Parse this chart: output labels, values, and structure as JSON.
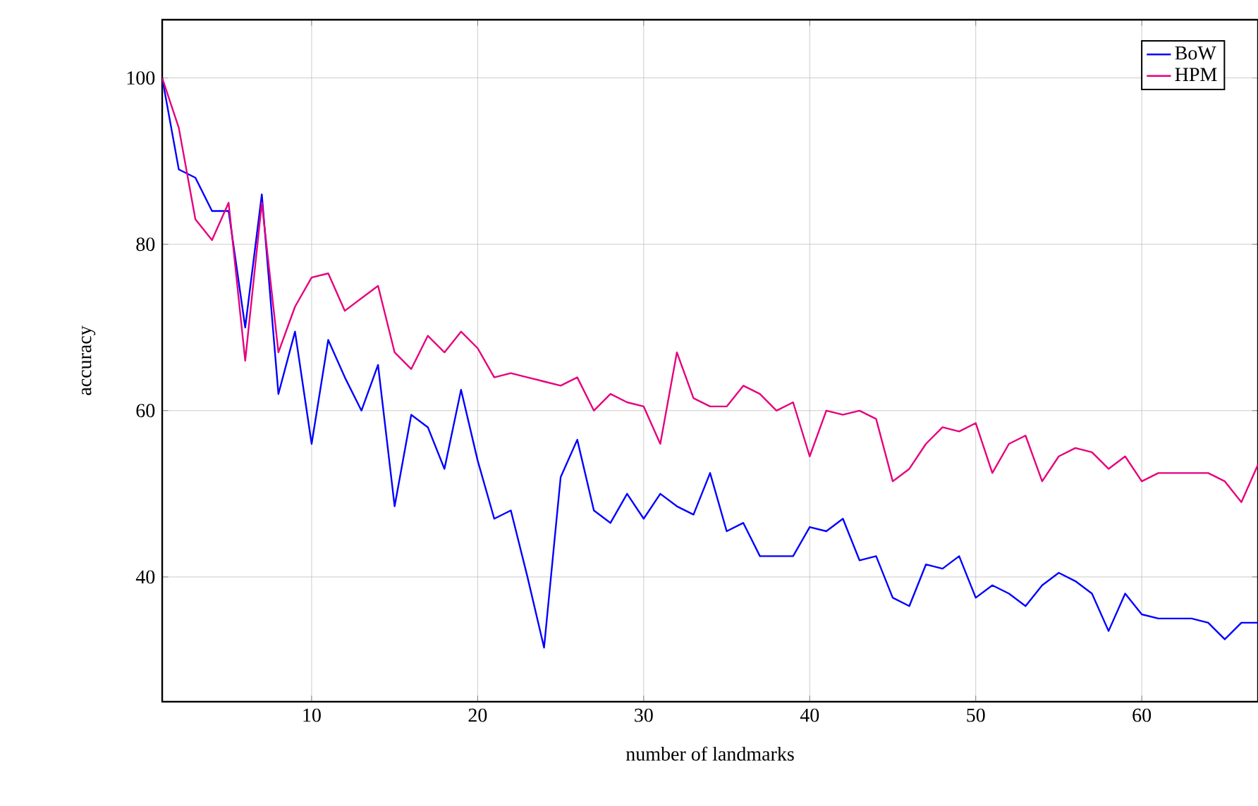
{
  "chart_data": {
    "type": "line",
    "xlabel": "number of landmarks",
    "ylabel": "accuracy",
    "x": [
      1,
      2,
      3,
      4,
      5,
      6,
      7,
      8,
      9,
      10,
      11,
      12,
      13,
      14,
      15,
      16,
      17,
      18,
      19,
      20,
      21,
      22,
      23,
      24,
      25,
      26,
      27,
      28,
      29,
      30,
      31,
      32,
      33,
      34,
      35,
      36,
      37,
      38,
      39,
      40,
      41,
      42,
      43,
      44,
      45,
      46,
      47,
      48,
      49,
      50,
      51,
      52,
      53,
      54,
      55,
      56,
      57,
      58,
      59,
      60,
      61,
      62,
      63,
      64,
      65,
      66,
      67
    ],
    "series": [
      {
        "name": "BoW",
        "color": "#0000ff",
        "values": [
          100,
          89,
          88,
          84,
          84,
          70,
          86,
          62,
          69.5,
          56,
          68.5,
          64,
          60,
          65.5,
          48.5,
          59.5,
          58,
          53,
          62.5,
          54,
          47,
          48,
          40,
          31.5,
          52,
          56.5,
          48,
          46.5,
          50,
          47,
          50,
          48.5,
          47.5,
          52.5,
          45.5,
          46.5,
          42.5,
          42.5,
          42.5,
          46,
          45.5,
          47,
          42,
          42.5,
          37.5,
          36.5,
          41.5,
          41,
          42.5,
          37.5,
          39,
          38,
          36.5,
          39,
          40.5,
          39.5,
          38,
          33.5,
          38,
          35.5,
          35,
          35,
          35,
          34.5,
          32.5,
          34.5,
          34.5
        ]
      },
      {
        "name": "HPM",
        "color": "#e6007e",
        "values": [
          100,
          94,
          83,
          80.5,
          85,
          66,
          85,
          67,
          72.5,
          76,
          76.5,
          72,
          73.5,
          75,
          67,
          65,
          69,
          67,
          69.5,
          67.5,
          64,
          64.5,
          64,
          63.5,
          63,
          64,
          60,
          62,
          61,
          60.5,
          56,
          67,
          61.5,
          60.5,
          60.5,
          63,
          62,
          60,
          61,
          54.5,
          60,
          59.5,
          60,
          59,
          51.5,
          53,
          56,
          58,
          57.5,
          58.5,
          52.5,
          56,
          57,
          51.5,
          54.5,
          55.5,
          55,
          53,
          54.5,
          51.5,
          52.5,
          52.5,
          52.5,
          52.5,
          51.5,
          49,
          53.5
        ]
      }
    ],
    "xlim": [
      1,
      67
    ],
    "ylim": [
      25,
      107
    ],
    "xticks": [
      10,
      20,
      30,
      40,
      50,
      60
    ],
    "yticks": [
      40,
      60,
      80,
      100
    ],
    "grid": true,
    "legend": "top right",
    "marker": "none",
    "line_style": "solid"
  }
}
